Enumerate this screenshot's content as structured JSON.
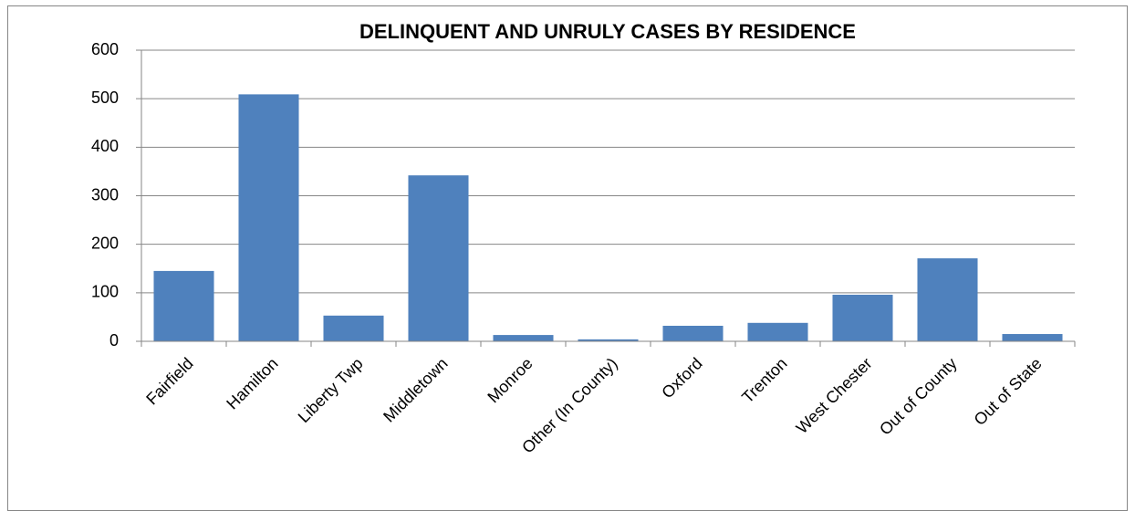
{
  "chart_data": {
    "type": "bar",
    "title": "DELINQUENT AND UNRULY CASES BY RESIDENCE",
    "categories": [
      "Fairfield",
      "Hamilton",
      "Liberty Twp",
      "Middletown",
      "Monroe",
      "Other (In County)",
      "Oxford",
      "Trenton",
      "West Chester",
      "Out of County",
      "Out of State"
    ],
    "values": [
      145,
      509,
      53,
      342,
      13,
      4,
      32,
      38,
      96,
      171,
      15
    ],
    "color": "#4f81bd",
    "ylim": [
      0,
      600
    ],
    "yticks": [
      0,
      100,
      200,
      300,
      400,
      500,
      600
    ],
    "grid": true
  }
}
